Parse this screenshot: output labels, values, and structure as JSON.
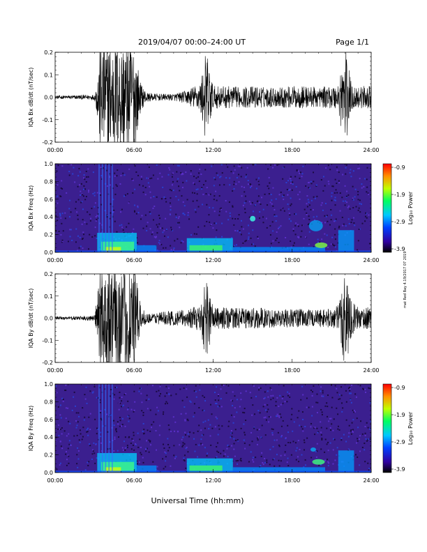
{
  "header": {
    "title": "2019/04/07  00:00–24:00 UT",
    "page": "Page 1/1"
  },
  "footer": {
    "xlabel": "Universal Time (hh:mm)",
    "side_note": "mat Red Bay 4.19/2017 07 2019"
  },
  "colors": {
    "trace": "#000000",
    "spectrogram_background": "#3b1f8f",
    "colorbar": [
      "#ff0000",
      "#ff8000",
      "#ffff00",
      "#00ff00",
      "#00ffff",
      "#0060ff",
      "#4000c0",
      "#000000"
    ]
  },
  "chart_data": [
    {
      "type": "line",
      "ylabel": "IQA Bx dB/dt (nT/sec)",
      "xlim": [
        0,
        24
      ],
      "ylim": [
        -0.2,
        0.2
      ],
      "x_ticks": [
        "00:00",
        "06:00",
        "12:00",
        "18:00",
        "24:00"
      ],
      "y_ticks": [
        "0.2",
        "0.1",
        "0.0",
        "-0.1",
        "-0.2"
      ],
      "x_unit": "hours UT",
      "envelope": {
        "x": [
          0,
          1,
          2,
          3,
          3.2,
          3.4,
          4,
          5,
          6,
          6.5,
          7,
          8,
          9,
          10,
          10.5,
          11,
          11.5,
          12,
          13,
          14,
          15,
          16,
          17,
          18,
          19,
          20,
          21,
          21.5,
          22,
          22.5,
          23,
          24
        ],
        "amplitude": [
          0.008,
          0.008,
          0.01,
          0.012,
          0.09,
          0.25,
          0.25,
          0.25,
          0.25,
          0.06,
          0.02,
          0.015,
          0.015,
          0.03,
          0.05,
          0.06,
          0.22,
          0.05,
          0.05,
          0.045,
          0.05,
          0.045,
          0.045,
          0.05,
          0.05,
          0.045,
          0.05,
          0.06,
          0.25,
          0.06,
          0.05,
          0.05
        ]
      }
    },
    {
      "type": "heatmap",
      "ylabel": "IQA Bx Freq (Hz)",
      "xlim": [
        0,
        24
      ],
      "ylim": [
        0,
        1.0
      ],
      "x_ticks": [
        "00:00",
        "06:00",
        "12:00",
        "18:00",
        "24:00"
      ],
      "y_ticks": [
        "1.0",
        "0.8",
        "0.6",
        "0.4",
        "0.2",
        "0.0"
      ],
      "colorbar": {
        "label": "Log₁₀ Power",
        "ticks": [
          "-0.9",
          "-1.9",
          "-2.9",
          "-3.9"
        ],
        "range": [
          -3.9,
          -0.9
        ]
      }
    },
    {
      "type": "line",
      "ylabel": "IQA By dB/dt (nT/sec)",
      "xlim": [
        0,
        24
      ],
      "ylim": [
        -0.2,
        0.2
      ],
      "x_ticks": [
        "00:00",
        "06:00",
        "12:00",
        "18:00",
        "24:00"
      ],
      "y_ticks": [
        "0.2",
        "0.1",
        "0.0",
        "-0.1",
        "-0.2"
      ],
      "x_unit": "hours UT",
      "envelope": {
        "x": [
          0,
          1,
          2,
          3,
          3.2,
          3.4,
          4,
          5,
          6,
          6.5,
          7,
          8,
          9,
          10,
          10.5,
          11,
          11.5,
          12,
          13,
          14,
          15,
          16,
          17,
          18,
          19,
          20,
          21,
          21.5,
          22,
          22.5,
          23,
          24
        ],
        "amplitude": [
          0.008,
          0.008,
          0.01,
          0.012,
          0.1,
          0.25,
          0.25,
          0.25,
          0.25,
          0.05,
          0.02,
          0.03,
          0.035,
          0.04,
          0.05,
          0.06,
          0.2,
          0.05,
          0.05,
          0.045,
          0.05,
          0.045,
          0.04,
          0.045,
          0.04,
          0.04,
          0.045,
          0.06,
          0.25,
          0.08,
          0.05,
          0.05
        ]
      }
    },
    {
      "type": "heatmap",
      "ylabel": "IQA By Freq (Hz)",
      "xlim": [
        0,
        24
      ],
      "ylim": [
        0,
        1.0
      ],
      "x_ticks": [
        "00:00",
        "06:00",
        "12:00",
        "18:00",
        "24:00"
      ],
      "y_ticks": [
        "1.0",
        "0.8",
        "0.6",
        "0.4",
        "0.2",
        "0.0"
      ],
      "colorbar": {
        "label": "Log₁₀ Power",
        "ticks": [
          "-0.9",
          "-1.9",
          "-2.9",
          "-3.9"
        ],
        "range": [
          -3.9,
          -0.9
        ]
      }
    }
  ]
}
